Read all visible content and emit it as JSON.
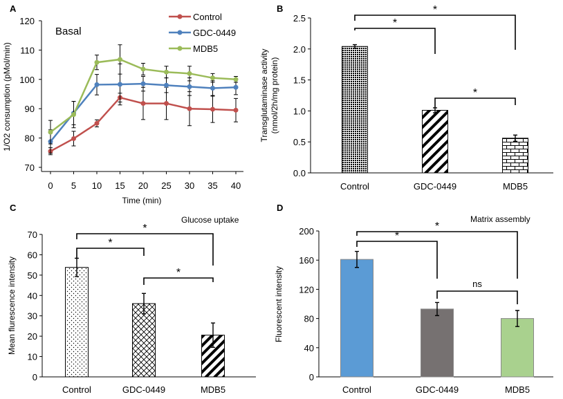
{
  "colors": {
    "control": "#c0504d",
    "gdc": "#4f81bd",
    "mdb5": "#9bbb59",
    "bar_d_control": "#5b9bd5",
    "bar_d_gdc": "#767171",
    "bar_d_mdb5": "#a9d18e"
  },
  "chart_data": [
    {
      "panel": "A",
      "type": "line",
      "annotation": "Basal",
      "xlabel": "Time (min)",
      "ylabel": "1/O2 consumption  (pMol/min)",
      "x": [
        0,
        5,
        10,
        15,
        20,
        25,
        30,
        35,
        40
      ],
      "xlim": [
        0,
        40
      ],
      "ylim": [
        70,
        120
      ],
      "yticks": [
        70,
        80,
        90,
        100,
        110,
        120
      ],
      "legend_position": "top-right",
      "series": [
        {
          "name": "Control",
          "color_key": "control",
          "values": [
            75.5,
            79.8,
            85,
            93.8,
            91.8,
            91.8,
            90,
            89.8,
            89.5
          ],
          "errors": [
            1.2,
            2.5,
            1.2,
            1.5,
            5.5,
            5.5,
            5.8,
            4.5,
            4
          ]
        },
        {
          "name": "GDC-0449",
          "color_key": "gdc",
          "values": [
            78.8,
            88.5,
            98.2,
            98.3,
            98.5,
            98,
            97.5,
            97,
            97.3
          ],
          "errors": [
            4,
            4,
            3.5,
            7,
            2.5,
            2.5,
            3,
            2.5,
            2.5
          ]
        },
        {
          "name": "MDB5",
          "color_key": "mdb5",
          "values": [
            82,
            88,
            105.8,
            106.8,
            103.5,
            102.5,
            102,
            100.5,
            100
          ],
          "errors": [
            4,
            4.5,
            2.5,
            5,
            2,
            2,
            2.5,
            1.5,
            1
          ]
        }
      ]
    },
    {
      "panel": "B",
      "type": "bar",
      "ylabel_lines": [
        "Transglutaminase  activity",
        "(nmol/2h/mg protein)"
      ],
      "categories": [
        "Control",
        "GDC-0449",
        "MDB5"
      ],
      "values": [
        2.04,
        1.01,
        0.56
      ],
      "errors": [
        0.03,
        0.04,
        0.05
      ],
      "ylim": [
        0,
        2.5
      ],
      "yticks": [
        "0.0",
        "0.5",
        "1.0",
        "1.5",
        "2.0",
        "2.5"
      ],
      "brackets": [
        {
          "from": 0,
          "to": 1,
          "label": "*"
        },
        {
          "from": 0,
          "to": 2,
          "label": "*"
        },
        {
          "from": 1,
          "to": 2,
          "label": "*"
        }
      ]
    },
    {
      "panel": "C",
      "type": "bar",
      "title": "Glucose uptake",
      "ylabel": "Mean flurescence intensity",
      "categories": [
        "Control",
        "GDC-0449",
        "MDB5"
      ],
      "values": [
        53.8,
        36,
        20.5
      ],
      "errors": [
        4.5,
        5,
        6
      ],
      "ylim": [
        0,
        70
      ],
      "yticks": [
        0,
        10,
        20,
        30,
        40,
        50,
        60,
        70
      ],
      "brackets": [
        {
          "from": 0,
          "to": 1,
          "label": "*"
        },
        {
          "from": 0,
          "to": 2,
          "label": "*"
        },
        {
          "from": 1,
          "to": 2,
          "label": "*"
        }
      ]
    },
    {
      "panel": "D",
      "type": "bar",
      "title": "Matrix assembly",
      "ylabel": "Fluorescent intensity",
      "categories": [
        "Control",
        "GDC-0449",
        "MDB5"
      ],
      "values": [
        161,
        93,
        80
      ],
      "errors": [
        11,
        9,
        11
      ],
      "ylim": [
        0,
        200
      ],
      "yticks": [
        0,
        40,
        80,
        120,
        160,
        200
      ],
      "bar_color_keys": [
        "bar_d_control",
        "bar_d_gdc",
        "bar_d_mdb5"
      ],
      "brackets": [
        {
          "from": 0,
          "to": 1,
          "label": "*"
        },
        {
          "from": 0,
          "to": 2,
          "label": "*"
        },
        {
          "from": 1,
          "to": 2,
          "label": "ns"
        }
      ]
    }
  ]
}
